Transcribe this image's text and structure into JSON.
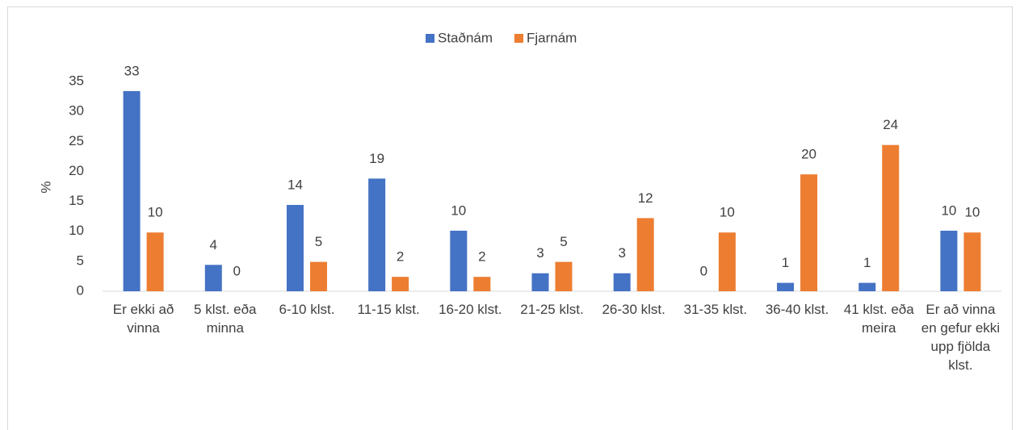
{
  "chart_data": {
    "type": "bar",
    "y_label": "%",
    "categories": [
      "Er ekki að vinna",
      "5 klst. eða minna",
      "6-10 klst.",
      "11-15 klst.",
      "16-20 klst.",
      "21-25 klst.",
      "26-30 klst.",
      "31-35 klst.",
      "36-40 klst.",
      "41 klst. eða meira",
      "Er að vinna en gefur ekki upp fjölda klst."
    ],
    "series": [
      {
        "name": "Staðnám",
        "color": "#4472c4",
        "values": [
          33.4,
          4.4,
          14.4,
          18.8,
          10.1,
          3.0,
          3.0,
          0,
          1.4,
          1.4,
          10.1
        ],
        "value_labels": [
          "33",
          "4",
          "14",
          "19",
          "10",
          "3",
          "3",
          "0",
          "1",
          "1",
          "10"
        ]
      },
      {
        "name": "Fjarnám",
        "color": "#ed7d31",
        "values": [
          9.8,
          0,
          4.9,
          2.4,
          2.4,
          4.9,
          12.2,
          9.8,
          19.5,
          24.4,
          9.8
        ],
        "value_labels": [
          "10",
          "0",
          "5",
          "2",
          "2",
          "5",
          "12",
          "10",
          "20",
          "24",
          "10"
        ]
      }
    ],
    "ylim": [
      0,
      35
    ],
    "yticks": [
      0,
      5,
      10,
      15,
      20,
      25,
      30,
      35
    ],
    "grid": false,
    "legend": "top"
  }
}
